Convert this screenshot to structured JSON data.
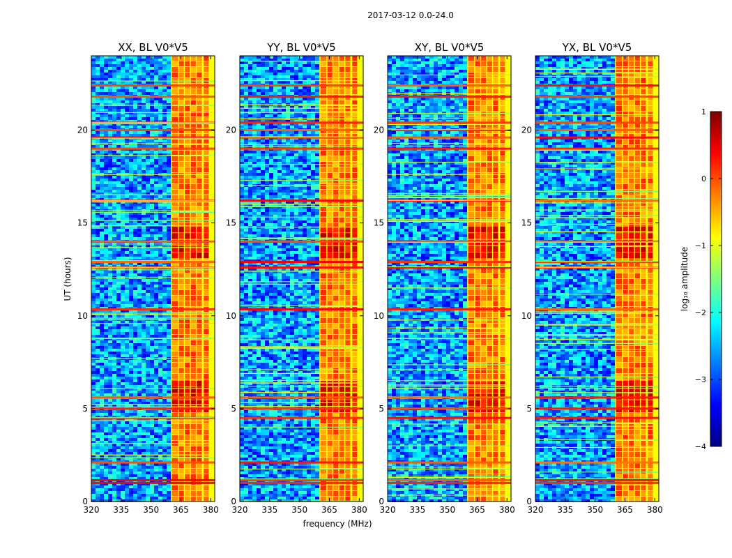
{
  "figure_title": "2017-03-12 0.0-24.0",
  "chart_data": {
    "type": "heatmap",
    "title": "2017-03-12 0.0-24.0",
    "xlabel": "frequency (MHz)",
    "ylabel": "UT (hours)",
    "xlim": [
      320,
      382
    ],
    "ylim": [
      0,
      24
    ],
    "xticks": [
      320,
      335,
      350,
      365,
      380
    ],
    "yticks": [
      0,
      5,
      10,
      15,
      20
    ],
    "panels": [
      {
        "title": "XX, BL V0*V5",
        "pol": "XX"
      },
      {
        "title": "YY, BL V0*V5",
        "pol": "YY"
      },
      {
        "title": "XY, BL V0*V5",
        "pol": "XY"
      },
      {
        "title": "YX, BL V0*V5",
        "pol": "YX"
      }
    ],
    "band_edge_mhz": 360,
    "colorbar": {
      "label": "log₁₀ amplitude",
      "min": -4,
      "max": 1,
      "ticks": [
        -4,
        -3,
        -2,
        -1,
        0,
        1
      ],
      "tick_labels": [
        "−4",
        "−3",
        "−2",
        "−1",
        "0",
        "1"
      ],
      "colormap": [
        "#00007f",
        "#0000ff",
        "#007fff",
        "#00ffff",
        "#7fff7f",
        "#ffff00",
        "#ff7f00",
        "#ff0000",
        "#7f0000"
      ]
    }
  }
}
